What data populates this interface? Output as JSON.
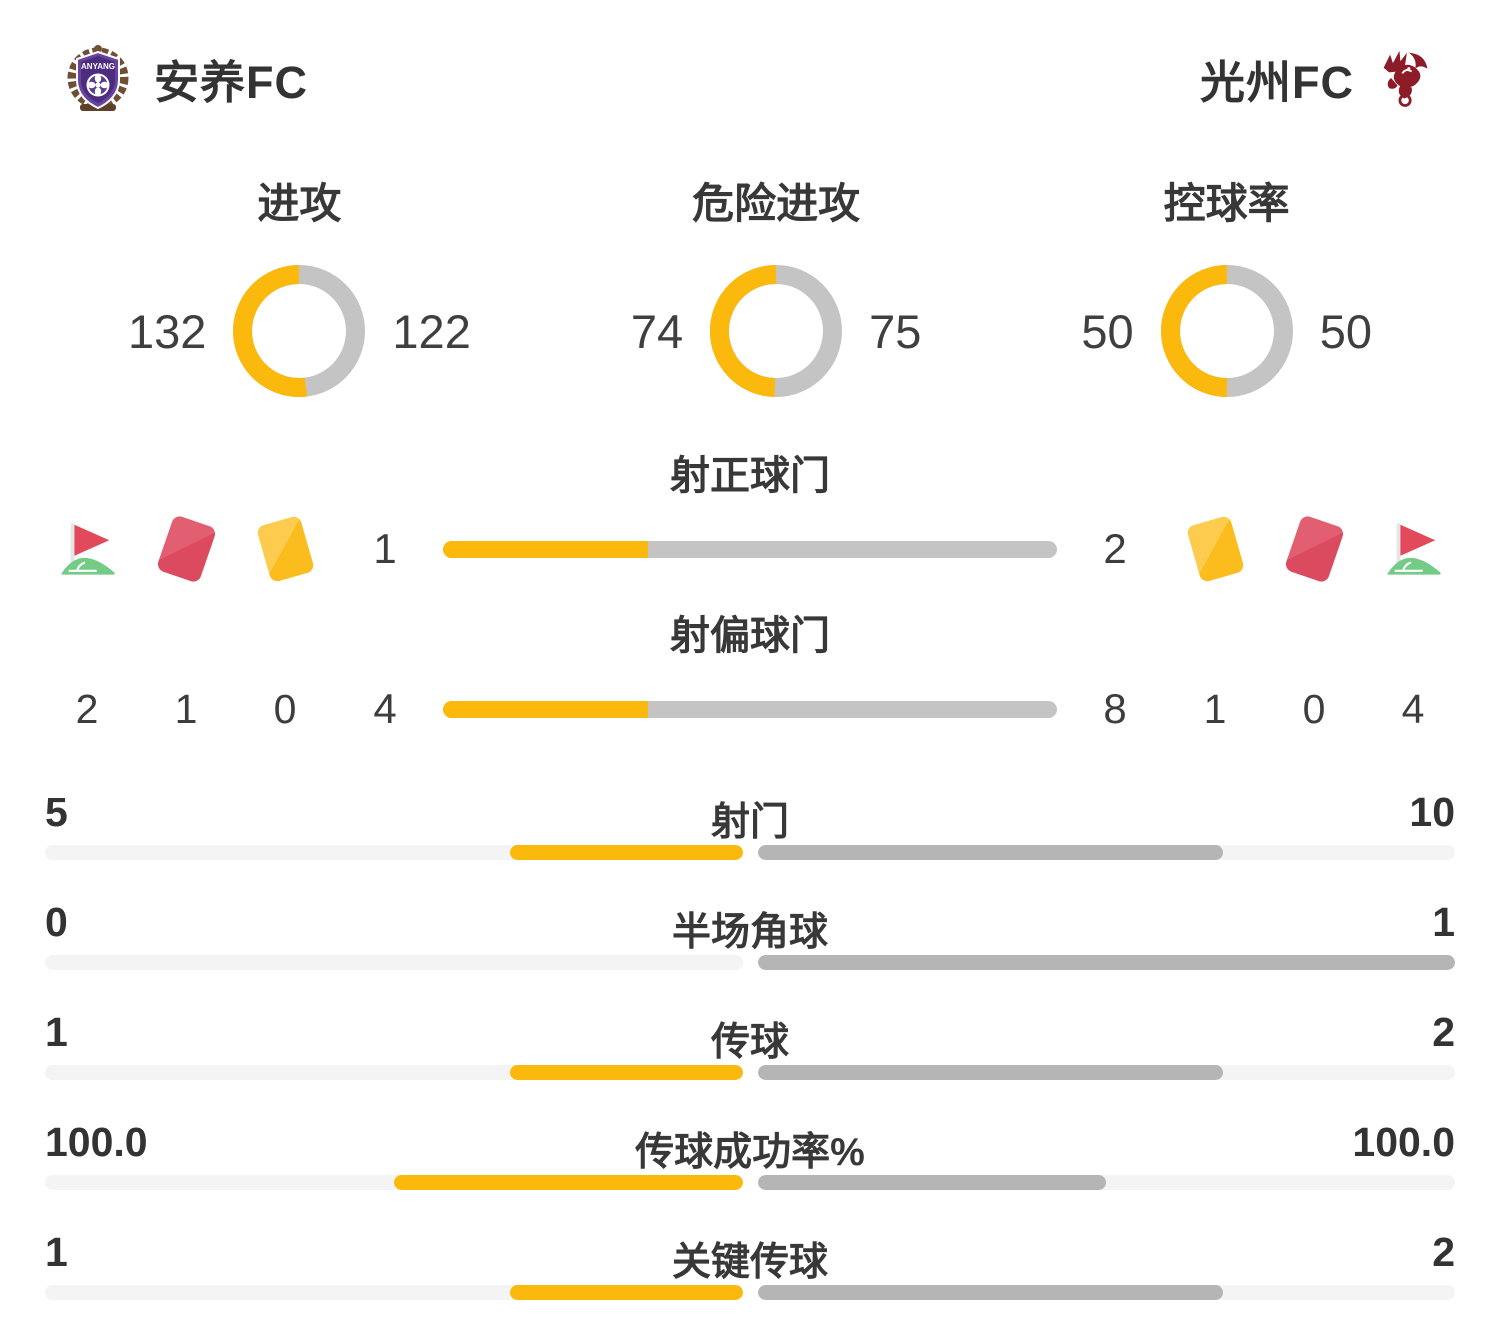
{
  "header": {
    "home_name": "安养FC",
    "away_name": "光州FC",
    "home_logo_text": "ANYANG"
  },
  "colors": {
    "home_accent": "#FBB90D",
    "away_donut_gray": "#C4C4C4",
    "away_bar_gray": "#B5B5B5",
    "track_gray": "#F4F4F4",
    "text": "#3A3A3A",
    "red_card": "#DB4A5F",
    "yellow_card": "#FBBC1D",
    "corner_flag_red": "#E2495A",
    "corner_flag_green": "#74CB85",
    "home_logo_purple": "#5B3A94",
    "away_logo_maroon": "#8C1C27"
  },
  "chart_data": {
    "donuts": [
      {
        "type": "donut",
        "title": "进攻",
        "home": 132,
        "away": 122
      },
      {
        "type": "donut",
        "title": "危险进攻",
        "home": 74,
        "away": 75
      },
      {
        "type": "donut",
        "title": "控球率",
        "home": 50,
        "away": 50
      }
    ],
    "duel_bars": [
      {
        "type": "bar",
        "title": "射正球门",
        "home": 1,
        "away": 2,
        "home_label": "1",
        "away_label": "2"
      },
      {
        "type": "bar",
        "title": "射偏球门",
        "home": 4,
        "away": 8,
        "home_label": "4",
        "away_label": "8"
      }
    ],
    "stat_bars": [
      {
        "type": "bar",
        "title": "射门",
        "home": 5,
        "away": 10,
        "home_label": "5",
        "away_label": "10"
      },
      {
        "type": "bar",
        "title": "半场角球",
        "home": 0,
        "away": 1,
        "home_label": "0",
        "away_label": "1"
      },
      {
        "type": "bar",
        "title": "传球",
        "home": 1,
        "away": 2,
        "home_label": "1",
        "away_label": "2"
      },
      {
        "type": "bar",
        "title": "传球成功率%",
        "home": 100.0,
        "away": 100.0,
        "home_label": "100.0",
        "away_label": "100.0"
      },
      {
        "type": "bar",
        "title": "关键传球",
        "home": 1,
        "away": 2,
        "home_label": "1",
        "away_label": "2"
      }
    ],
    "events": {
      "home": {
        "corner_kicks": "2",
        "red_cards": "1",
        "yellow_cards": "0"
      },
      "away": {
        "yellow_cards": "1",
        "red_cards": "0",
        "corner_kicks": "4"
      }
    }
  }
}
